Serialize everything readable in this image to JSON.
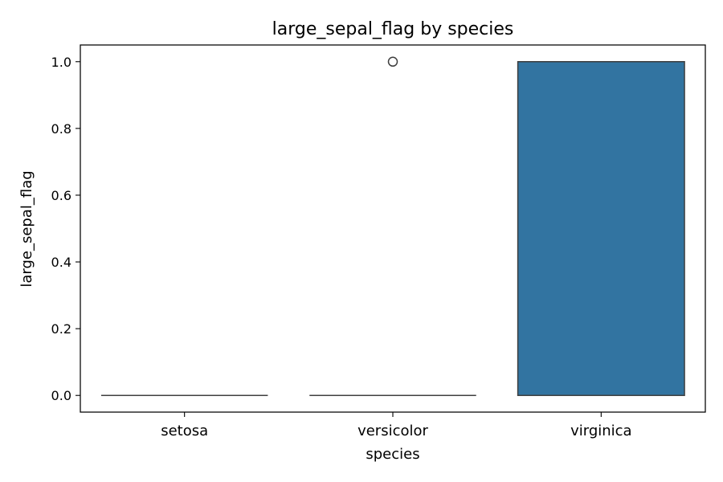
{
  "chart_data": {
    "type": "box",
    "title": "large_sepal_flag by species",
    "xlabel": "species",
    "ylabel": "large_sepal_flag",
    "ylim": [
      -0.05,
      1.05
    ],
    "yticks": [
      0.0,
      0.2,
      0.4,
      0.6,
      0.8,
      1.0
    ],
    "ytick_labels": [
      "0.0",
      "0.2",
      "0.4",
      "0.6",
      "0.8",
      "1.0"
    ],
    "categories": [
      "setosa",
      "versicolor",
      "virginica"
    ],
    "boxes": [
      {
        "category": "setosa",
        "min": 0,
        "q1": 0,
        "median": 0,
        "q3": 0,
        "max": 0,
        "outliers": []
      },
      {
        "category": "versicolor",
        "min": 0,
        "q1": 0,
        "median": 0,
        "q3": 0,
        "max": 0,
        "outliers": [
          1.0
        ]
      },
      {
        "category": "virginica",
        "min": 0,
        "q1": 0,
        "median": 1,
        "q3": 1,
        "max": 1,
        "outliers": []
      }
    ],
    "box_color": "#3274a1",
    "line_color": "#3f3f3f",
    "grid": false
  }
}
